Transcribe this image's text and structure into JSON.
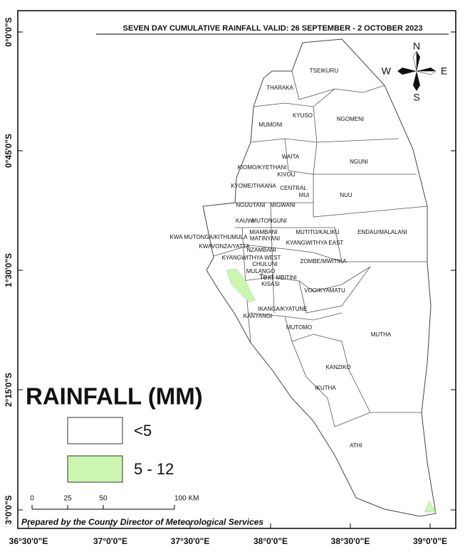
{
  "title": "SEVEN DAY CUMULATIVE RAINFALL VALID: 26 SEPTEMBER - 2 OCTOBER  2023",
  "axes": {
    "left": [
      "0°0'0\"S",
      "0°45'0\"S",
      "1°30'0\"S",
      "2°15'0\"S",
      "3°0'0\"S"
    ],
    "bottom": [
      "36°30'0\"E",
      "37°0'0\"E",
      "37°30'0\"E",
      "38°0'0\"E",
      "38°30'0\"E",
      "39°0'0\"E"
    ]
  },
  "compass": {
    "north": "N",
    "south": "S",
    "east": "E",
    "west": "W"
  },
  "regions": [
    "TSEIKURU",
    "THARAKA",
    "KYUSO",
    "NGOMENI",
    "MUMONI",
    "WAITA",
    "NGUNI",
    "KIOMO/KYETHANI",
    "KIVOU",
    "KYOME/THAANA",
    "CENTRAL",
    "MUI",
    "NUU",
    "NGUUTANI",
    "MIGWANI",
    "KAUWI",
    "MUTONGUNI",
    "MIAMBANI",
    "MUTITO/KALIKU",
    "ENDAU/MALALANI",
    "KWA MUTONGA/KITHUMULA",
    "MATINYANI",
    "KYANGWITHYA EAST",
    "KWAVONZA/YATTA",
    "NZAMBANI",
    "KYANGWITHYA WEST",
    "ZOMBE/MWITIKA",
    "CHULUNI",
    "MULANGO",
    "Text",
    "MBITINI",
    "KISASI",
    "VOO/KYAMATU",
    "IKANGA/KYATUNE",
    "KANYANGI",
    "MUTOMO",
    "MUTHA",
    "KANZIKO",
    "IKUTHA",
    "ATHI"
  ],
  "legend": {
    "title": "RAINFALL (MM)",
    "items": [
      {
        "label": "<5",
        "color": "#ffffff"
      },
      {
        "label": "5 - 12",
        "color": "#ccf5b0"
      }
    ]
  },
  "scale_bar": {
    "labels": [
      "0",
      "25",
      "50",
      "100 KM"
    ]
  },
  "credit": "Prepared by the County Director of Meteorological Services"
}
